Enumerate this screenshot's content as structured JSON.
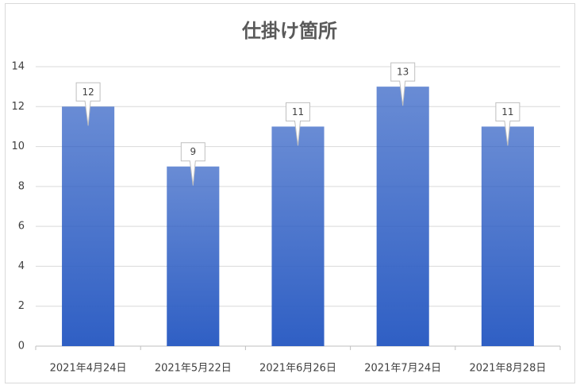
{
  "chart_data": {
    "type": "bar",
    "title": "仕掛け箇所",
    "categories": [
      "2021年4月24日",
      "2021年5月22日",
      "2021年6月26日",
      "2021年7月24日",
      "2021年8月28日"
    ],
    "values": [
      12,
      9,
      11,
      13,
      11
    ],
    "color": "#2f5fc4",
    "ylim": [
      0,
      14
    ],
    "yticks": [
      0,
      2,
      4,
      6,
      8,
      10,
      12,
      14
    ],
    "grid": true
  }
}
